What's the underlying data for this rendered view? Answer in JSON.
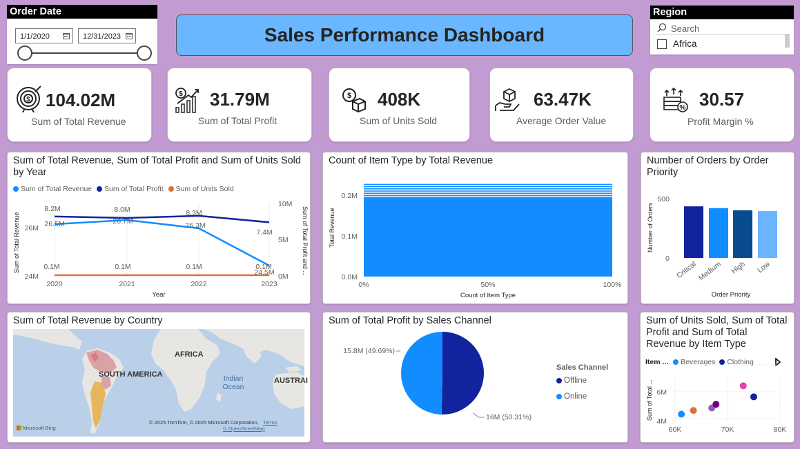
{
  "title": "Sales Performance Dashboard",
  "order_date": {
    "header": "Order Date",
    "start": "1/1/2020",
    "end": "12/31/2023",
    "range_start_fraction": 0,
    "range_end_fraction": 1
  },
  "region": {
    "header": "Region",
    "search_placeholder": "Search",
    "items": [
      "Africa"
    ]
  },
  "kpis": [
    {
      "value": "104.02M",
      "label": "Sum of Total Revenue",
      "icon": "target-dollar-icon"
    },
    {
      "value": "31.79M",
      "label": "Sum of Total Profit",
      "icon": "profit-growth-icon"
    },
    {
      "value": "408K",
      "label": "Sum of Units Sold",
      "icon": "dollar-box-icon"
    },
    {
      "value": "63.47K",
      "label": "Average Order Value",
      "icon": "hand-box-icon"
    },
    {
      "value": "30.57",
      "label": "Profit Margin %",
      "icon": "money-percent-icon"
    }
  ],
  "line_chart": {
    "title": "Sum of Total Revenue, Sum of Total Profit and Sum of Units Sold by Year",
    "legend": [
      "Sum of Total Revenue",
      "Sum of Total Profit",
      "Sum of Units Sold"
    ],
    "xlabel": "Year",
    "ylabel_left": "Sum of Total Revenue",
    "ylabel_right": "Sum of Total Profit and ...",
    "left_ticks": [
      "26M",
      "24M"
    ],
    "right_ticks": [
      "10M",
      "5M",
      "0M"
    ]
  },
  "bar_h_chart": {
    "title": "Count of Item Type by Total Revenue",
    "xlabel": "Count of Item Type",
    "ylabel": "Total Revenue",
    "y_ticks": [
      "0.2M",
      "0.1M",
      "0.0M"
    ],
    "x_ticks": [
      "0%",
      "50%",
      "100%"
    ]
  },
  "priority_chart": {
    "title": "Number of Orders by Order Priority",
    "xlabel": "Order Priority",
    "ylabel": "Number of Orders",
    "y_ticks": [
      "500",
      "0"
    ]
  },
  "map": {
    "title": "Sum of Total Revenue by Country",
    "labels": [
      "AFRICA",
      "SOUTH AMERICA",
      "Indian Ocean",
      "AUSTRAI"
    ],
    "attribution": "© 2025 TomTom, © 2025 Microsoft Corporation,",
    "terms": "Terms",
    "osm": "© OpenStreetMap",
    "bing": "Microsoft Bing"
  },
  "pie_chart": {
    "title": "Sum of Total Profit by Sales Channel",
    "legend_title": "Sales Channel"
  },
  "scatter_chart": {
    "title": "Sum of Units Sold, Sum of Total Profit and Sum of Total Revenue by Item Type",
    "legend_title": "Item ...",
    "ylabel": "Sum of Total ..."
  },
  "colors": {
    "revenue": "#118dff",
    "profit": "#12239e",
    "units": "#e66c37",
    "background": "#c39bd3",
    "title_bar": "#6ab7ff"
  },
  "chart_data": [
    {
      "type": "line",
      "title": "Sum of Total Revenue, Sum of Total Profit and Sum of Units Sold by Year",
      "x": [
        "2020",
        "2021",
        "2022",
        "2023"
      ],
      "xlabel": "Year",
      "series": [
        {
          "name": "Sum of Total Revenue",
          "axis": "left",
          "values": [
            26.5,
            26.7,
            26.3,
            24.5
          ],
          "labels": [
            "26.5M",
            "26.7M",
            "26.3M",
            "24.5M"
          ]
        },
        {
          "name": "Sum of Total Profit",
          "axis": "right",
          "values": [
            8.2,
            8.0,
            8.3,
            7.4
          ],
          "labels": [
            "8.2M",
            "8.0M",
            "8.3M",
            "7.4M"
          ]
        },
        {
          "name": "Sum of Units Sold",
          "axis": "right",
          "values": [
            0.1,
            0.1,
            0.1,
            0.1
          ],
          "labels": [
            "0.1M",
            "0.1M",
            "0.1M",
            "0.1M"
          ]
        }
      ],
      "ylim_left": [
        24,
        27.5
      ],
      "ylim_right": [
        0,
        10
      ]
    },
    {
      "type": "bar",
      "orientation": "horizontal",
      "title": "Count of Item Type by Total Revenue",
      "xlim": [
        0,
        100
      ],
      "ylim": [
        0,
        0.25
      ],
      "fill_percent": 100,
      "y_max_value": 0.24
    },
    {
      "type": "bar",
      "title": "Number of Orders by Order Priority",
      "categories": [
        "Critical",
        "Medium",
        "High",
        "Low"
      ],
      "values": [
        435,
        420,
        402,
        395
      ],
      "bar_colors": [
        "#12239e",
        "#118dff",
        "#084c8d",
        "#6bb4ff"
      ],
      "ylim": [
        0,
        600
      ]
    },
    {
      "type": "pie",
      "title": "Sum of Total Profit by Sales Channel",
      "labels": [
        "Offline",
        "Online"
      ],
      "values": [
        16.0,
        15.8
      ],
      "percents": [
        50.31,
        49.69
      ],
      "slice_labels": [
        "16M (50.31%)",
        "15.8M (49.69%)"
      ],
      "colors": [
        "#12239e",
        "#118dff"
      ]
    },
    {
      "type": "scatter",
      "title": "Sum of Units Sold, Sum of Total Profit and Sum of Total Revenue by Item Type",
      "legend": [
        "Beverages",
        "Clothing"
      ],
      "x_ticks": [
        "60K",
        "70K",
        "80K"
      ],
      "y_ticks": [
        "6M",
        "4M"
      ],
      "xlim": [
        60,
        80
      ],
      "ylim": [
        3.5,
        7.3
      ],
      "points": [
        {
          "x": 61.2,
          "y": 4.2,
          "color": "#118dff"
        },
        {
          "x": 63.5,
          "y": 4.5,
          "color": "#e66c37"
        },
        {
          "x": 67.0,
          "y": 4.7,
          "color": "#9b59b6"
        },
        {
          "x": 67.8,
          "y": 5.0,
          "color": "#6b007b"
        },
        {
          "x": 73.0,
          "y": 6.5,
          "color": "#e044a7"
        },
        {
          "x": 75.0,
          "y": 5.6,
          "color": "#12239e"
        }
      ]
    }
  ]
}
